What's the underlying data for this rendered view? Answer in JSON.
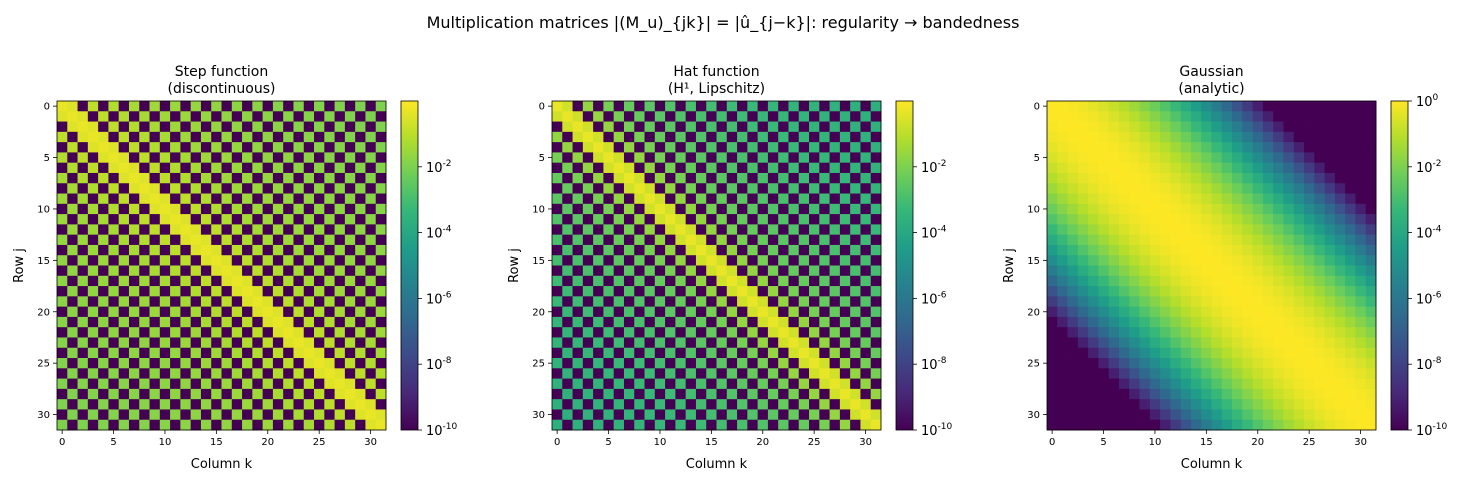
{
  "figure": {
    "suptitle": "Multiplication matrices |(M_u)_{jk}| = |û_{j−k}|: regularity → bandedness"
  },
  "chart_data": [
    {
      "type": "heatmap",
      "title": [
        "Step function",
        "(discontinuous)"
      ],
      "xlabel": "Column k",
      "ylabel": "Row j",
      "size": 32,
      "x_ticks": [
        0,
        5,
        10,
        15,
        20,
        25,
        30
      ],
      "y_ticks": [
        0,
        5,
        10,
        15,
        20,
        25,
        30
      ],
      "scale": "log",
      "vmin_exp": -10,
      "vmax_exp": 0,
      "colorbar_ticks": [
        "10^{-2}",
        "10^{-4}",
        "10^{-6}",
        "10^{-8}",
        "10^{-10}"
      ],
      "colorbar_tick_exps": [
        -2,
        -4,
        -6,
        -8,
        -10
      ],
      "colormap": "viridis",
      "entry_rule": "|M_jk| = 1/2 on diagonal; 1/(pi|j-k|) for odd |j-k|; ~0 for even |j-k|",
      "log10_values_by_offset": {
        "0": -0.3,
        "odd": "log10(1/(pi*|j-k|))",
        "even_nonzero": -10
      }
    },
    {
      "type": "heatmap",
      "title": [
        "Hat function",
        "(H¹, Lipschitz)"
      ],
      "xlabel": "Column k",
      "ylabel": "Row j",
      "size": 32,
      "x_ticks": [
        0,
        5,
        10,
        15,
        20,
        25,
        30
      ],
      "y_ticks": [
        0,
        5,
        10,
        15,
        20,
        25,
        30
      ],
      "scale": "log",
      "vmin_exp": -10,
      "vmax_exp": 0,
      "colorbar_ticks": [
        "10^{-2}",
        "10^{-4}",
        "10^{-6}",
        "10^{-8}",
        "10^{-10}"
      ],
      "colorbar_tick_exps": [
        -2,
        -4,
        -6,
        -8,
        -10
      ],
      "colormap": "viridis",
      "entry_rule": "|M_jk| = 1/2 on diagonal; 2/(pi^2 (j-k)^2) for odd |j-k|; ~0 for even |j-k|",
      "log10_values_by_offset": {
        "0": -0.3,
        "odd": "log10(2/(pi^2 (j-k)^2))",
        "even_nonzero": -10
      }
    },
    {
      "type": "heatmap",
      "title": [
        "Gaussian",
        "(analytic)"
      ],
      "xlabel": "Column k",
      "ylabel": "Row j",
      "size": 32,
      "x_ticks": [
        0,
        5,
        10,
        15,
        20,
        25,
        30
      ],
      "y_ticks": [
        0,
        5,
        10,
        15,
        20,
        25,
        30
      ],
      "scale": "log",
      "vmin_exp": -10,
      "vmax_exp": 0,
      "colorbar_ticks": [
        "10^{0}",
        "10^{-2}",
        "10^{-4}",
        "10^{-6}",
        "10^{-8}",
        "10^{-10}"
      ],
      "colorbar_tick_exps": [
        0,
        -2,
        -4,
        -6,
        -8,
        -10
      ],
      "colormap": "viridis",
      "entry_rule": "|M_jk| = exp(-(j-k)^2 / 19), clipped at 1e-10",
      "log10_values_by_offset": {
        "0": 0,
        "5": -0.57,
        "10": -2.29,
        "15": -5.14,
        "20": -9.14,
        "21+": -10
      }
    }
  ]
}
